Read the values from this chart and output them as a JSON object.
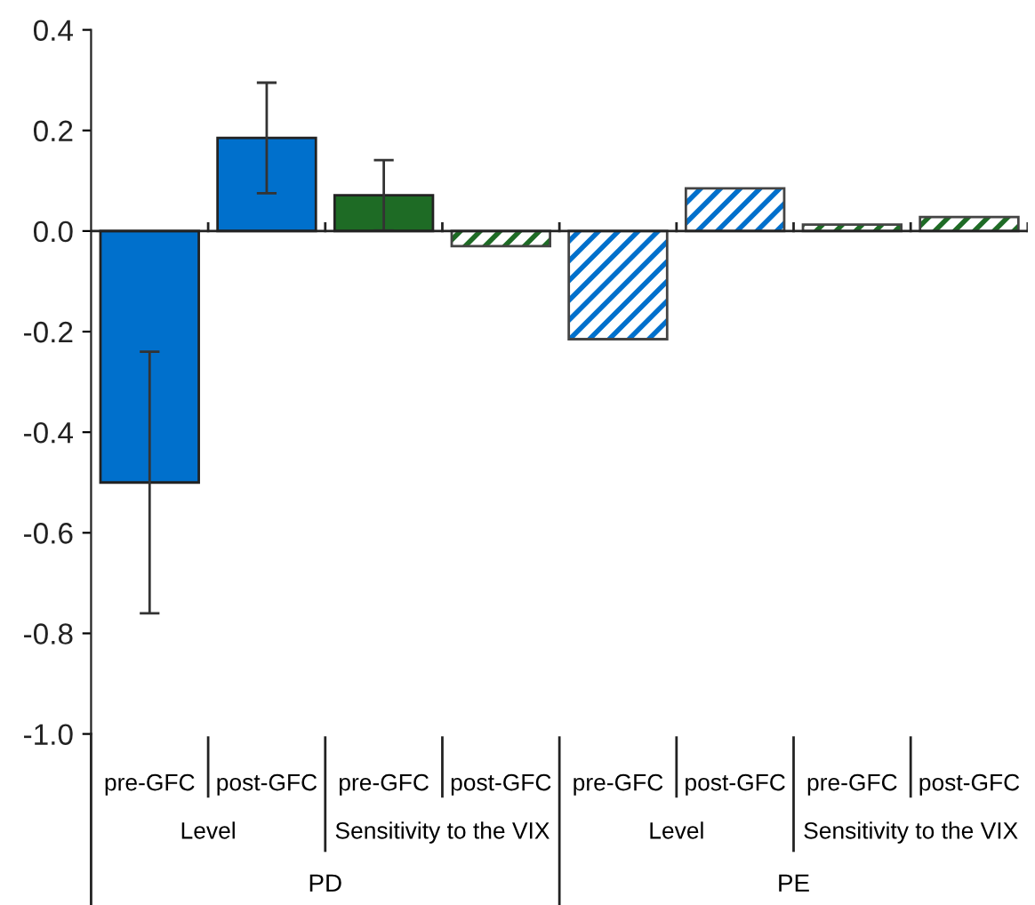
{
  "chart_data": {
    "type": "bar",
    "categories": [
      "pre-GFC",
      "post-GFC",
      "pre-GFC",
      "post-GFC",
      "pre-GFC",
      "post-GFC",
      "pre-GFC",
      "post-GFC"
    ],
    "series": [
      {
        "colors": [
          "#0070cc",
          "#0070cc",
          "#1e6b25",
          null,
          null,
          null,
          null,
          null
        ],
        "values": [
          -0.5,
          0.185,
          0.071,
          null,
          null,
          null,
          null,
          null
        ],
        "errors": [
          0.26,
          0.11,
          0.07,
          null,
          null,
          null,
          null,
          null
        ]
      },
      {
        "colors": [
          null,
          null,
          null,
          "#1e6b25",
          "#0070cc",
          "#0070cc",
          "#1e6b25",
          "#1e6b25"
        ],
        "values": [
          null,
          null,
          null,
          -0.03,
          -0.215,
          0.085,
          0.013,
          0.028
        ]
      }
    ],
    "annotations": [
      "Level",
      "Sensitivity to the VIX",
      "Level",
      "Sensitivity to the VIX",
      "PD",
      "PE"
    ],
    "ylim": [
      -1.0,
      0.4
    ],
    "yticks": [
      {
        "value": -1.0,
        "label": "-1.0"
      },
      {
        "value": -0.8,
        "label": "-0.8"
      },
      {
        "value": -0.6,
        "label": "-0.6"
      },
      {
        "value": -0.4,
        "label": "-0.4"
      },
      {
        "value": -0.2,
        "label": "-0.2"
      },
      {
        "value": 0.0,
        "label": "0.0"
      },
      {
        "value": 0.2,
        "label": "0.2"
      },
      {
        "value": 0.4,
        "label": "0.4"
      }
    ],
    "legend": false
  }
}
